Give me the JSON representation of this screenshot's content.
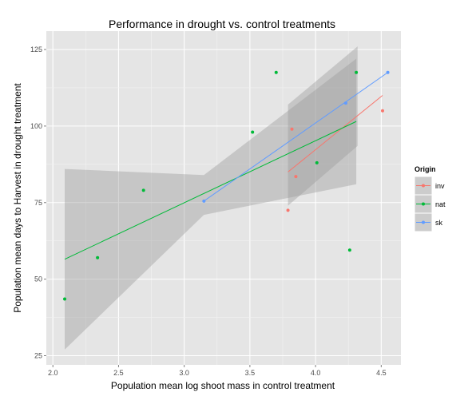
{
  "chart_data": {
    "type": "scatter",
    "title": "Performance in drought vs. control treatments",
    "xlabel": "Population mean log shoot mass in control treatment",
    "ylabel": "Population mean days to Harvest in drought treatment",
    "xlim": [
      1.95,
      4.65
    ],
    "ylim": [
      22,
      131
    ],
    "x_ticks": [
      2.0,
      2.5,
      3.0,
      3.5,
      4.0,
      4.5
    ],
    "x_tick_labels": [
      "2.0",
      "2.5",
      "3.0",
      "3.5",
      "4.0",
      "4.5"
    ],
    "y_ticks": [
      25,
      50,
      75,
      100,
      125
    ],
    "y_tick_labels": [
      "25",
      "50",
      "75",
      "100",
      "125"
    ],
    "grid": true,
    "legend": {
      "title": "Origin",
      "placement": "right"
    },
    "series": [
      {
        "name": "inv",
        "color": "#F8766D",
        "points": [
          [
            3.79,
            72.5
          ],
          [
            3.82,
            99
          ],
          [
            3.85,
            83.5
          ],
          [
            4.51,
            105
          ]
        ],
        "fit": [
          [
            3.79,
            85
          ],
          [
            4.51,
            110
          ]
        ],
        "band": {
          "x": [
            3.79,
            4.32
          ],
          "lower": [
            74,
            93.5
          ],
          "upper": [
            107,
            126
          ]
        }
      },
      {
        "name": "nat",
        "color": "#00BA38",
        "points": [
          [
            2.09,
            43.5
          ],
          [
            2.34,
            57
          ],
          [
            2.69,
            79
          ],
          [
            3.52,
            98
          ],
          [
            3.7,
            117.5
          ],
          [
            4.01,
            88
          ],
          [
            4.26,
            59.5
          ],
          [
            4.31,
            117.5
          ]
        ],
        "fit": [
          [
            2.09,
            56.5
          ],
          [
            4.31,
            101.5
          ]
        ],
        "band": {
          "x": [
            2.09,
            3.15,
            4.31
          ],
          "lower": [
            27,
            71,
            81
          ],
          "upper": [
            86,
            84,
            122
          ]
        }
      },
      {
        "name": "sk",
        "color": "#619CFF",
        "points": [
          [
            3.15,
            75.5
          ],
          [
            4.23,
            107.5
          ],
          [
            4.55,
            117.5
          ]
        ],
        "fit": [
          [
            3.15,
            75.5
          ],
          [
            4.55,
            117.5
          ]
        ],
        "band": null
      }
    ]
  }
}
